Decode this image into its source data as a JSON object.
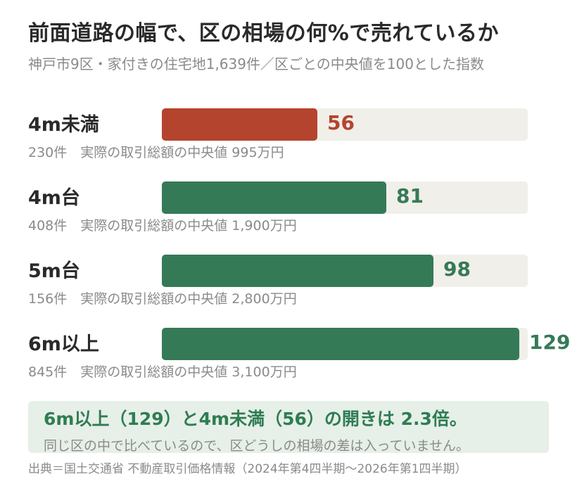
{
  "header": {
    "title": "前面道路の幅で、区の相場の何%で売れているか",
    "subtitle": "神戸市9区・家付きの住宅地1,639件／区ごとの中央値を100とした指数"
  },
  "chart_data": {
    "type": "bar",
    "orientation": "horizontal",
    "title": "前面道路の幅で、区の相場の何%で売れているか",
    "subtitle": "神戸市9区・家付きの住宅地1,639件／区ごとの中央値を100とした指数",
    "categories": [
      "4m未満",
      "4m台",
      "5m台",
      "6m以上"
    ],
    "values": [
      56,
      81,
      98,
      129
    ],
    "notes": [
      "230件　実際の取引総額の中央値 995万円",
      "408件　実際の取引総額の中央値 1,900万円",
      "156件　実際の取引総額の中央値 2,800万円",
      "845件　実際の取引総額の中央値 3,100万円"
    ],
    "colors": [
      "#b5442e",
      "#357a57",
      "#357a57",
      "#357a57"
    ],
    "track_color": "#f1efe9",
    "xlim": [
      0,
      132
    ],
    "grid": false,
    "legend": "none"
  },
  "callout": {
    "main": "6m以上（129）と4m未満（56）の開きは 2.3倍。",
    "sub": "同じ区の中で比べているので、区どうしの相場の差は入っていません。"
  },
  "source": "出典＝国土交通省 不動産取引価格情報（2024年第4四半期〜2026年第1四半期）"
}
